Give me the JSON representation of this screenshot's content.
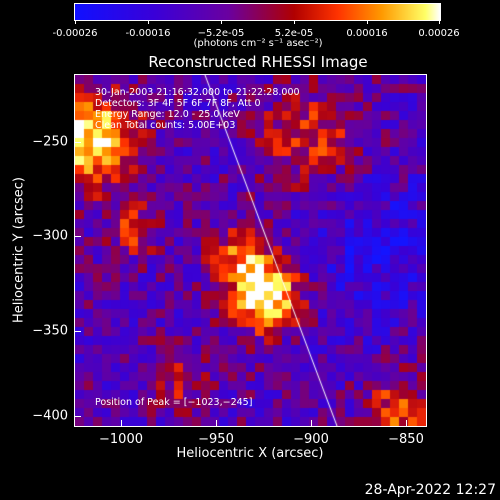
{
  "colorbar": {
    "ticks": [
      "-0.00026",
      "-0.00016",
      "−5.2e-05",
      "5.2e-05",
      "0.00016",
      "0.00026"
    ],
    "units": "(photons cm⁻² s⁻¹ asec⁻²)"
  },
  "title": "Reconstructed RHESSI Image",
  "annotations": {
    "time_range": "30-Jan-2003 21:16:32.000 to 21:22:28.000",
    "detectors": "Detectors: 3F 4F 5F 6F 7F 8F, Att 0",
    "energy": "Energy Range: 12.0 - 25.0 keV",
    "method": "Clean    Total counts: 5.00E+03",
    "peak": "Position of Peak = [−1023,−245]"
  },
  "axes": {
    "xlabel": "Heliocentric X (arcsec)",
    "ylabel": "Heliocentric Y (arcsec)",
    "xticks": [
      "−1000",
      "−950",
      "−900",
      "−850"
    ],
    "yticks": [
      "−250",
      "−300",
      "−350",
      "−400"
    ]
  },
  "datestamp": "28-Apr-2022 12:27"
}
